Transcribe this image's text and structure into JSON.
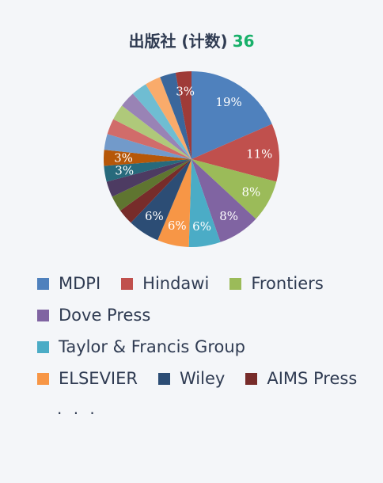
{
  "header": {
    "title": "出版社 (计数)",
    "count": "36"
  },
  "chart_data": {
    "type": "pie",
    "slices": [
      {
        "name": "MDPI",
        "value": 19,
        "label": "19%",
        "color": "#4f81bd"
      },
      {
        "name": "Hindawi",
        "value": 11,
        "label": "11%",
        "color": "#c0504d"
      },
      {
        "name": "Frontiers",
        "value": 8,
        "label": "8%",
        "color": "#9bbb59"
      },
      {
        "name": "Dove Press",
        "value": 8,
        "label": "8%",
        "color": "#8064a2"
      },
      {
        "name": "Taylor & Francis Group",
        "value": 6,
        "label": "6%",
        "color": "#4bacc6"
      },
      {
        "name": "ELSEVIER",
        "value": 6,
        "label": "6%",
        "color": "#f79646"
      },
      {
        "name": "Wiley",
        "value": 6,
        "label": "6%",
        "color": "#2c4d75"
      },
      {
        "name": "",
        "value": 3,
        "label": "",
        "color": "#772c2a"
      },
      {
        "name": "",
        "value": 3,
        "label": "",
        "color": "#5f7530"
      },
      {
        "name": "",
        "value": 3,
        "label": "",
        "color": "#4d3b62"
      },
      {
        "name": "",
        "value": 3,
        "label": "3%",
        "color": "#276a7c"
      },
      {
        "name": "",
        "value": 3,
        "label": "3%",
        "color": "#b65708"
      },
      {
        "name": "",
        "value": 3,
        "label": "",
        "color": "#729aca"
      },
      {
        "name": "",
        "value": 3,
        "label": "",
        "color": "#d16c6a"
      },
      {
        "name": "",
        "value": 3,
        "label": "",
        "color": "#afc97a"
      },
      {
        "name": "",
        "value": 3,
        "label": "",
        "color": "#9983b5"
      },
      {
        "name": "",
        "value": 3,
        "label": "",
        "color": "#6fbdd2"
      },
      {
        "name": "",
        "value": 3,
        "label": "",
        "color": "#f9ab6b"
      },
      {
        "name": "",
        "value": 3,
        "label": "",
        "color": "#3a679c"
      },
      {
        "name": "",
        "value": 3,
        "label": "3%",
        "color": "#9f3b38"
      }
    ]
  },
  "legend": {
    "rows": [
      [
        {
          "label": "MDPI",
          "color": "#4f81bd"
        },
        {
          "label": "Hindawi",
          "color": "#c0504d"
        },
        {
          "label": "Frontiers",
          "color": "#9bbb59"
        }
      ],
      [
        {
          "label": "Dove Press",
          "color": "#8064a2"
        }
      ],
      [
        {
          "label": "Taylor & Francis Group",
          "color": "#4bacc6"
        }
      ],
      [
        {
          "label": "ELSEVIER",
          "color": "#f79646"
        },
        {
          "label": "Wiley",
          "color": "#2c4d75"
        },
        {
          "label": "AIMS Press",
          "color": "#772c2a"
        }
      ]
    ],
    "more": ". . ."
  }
}
